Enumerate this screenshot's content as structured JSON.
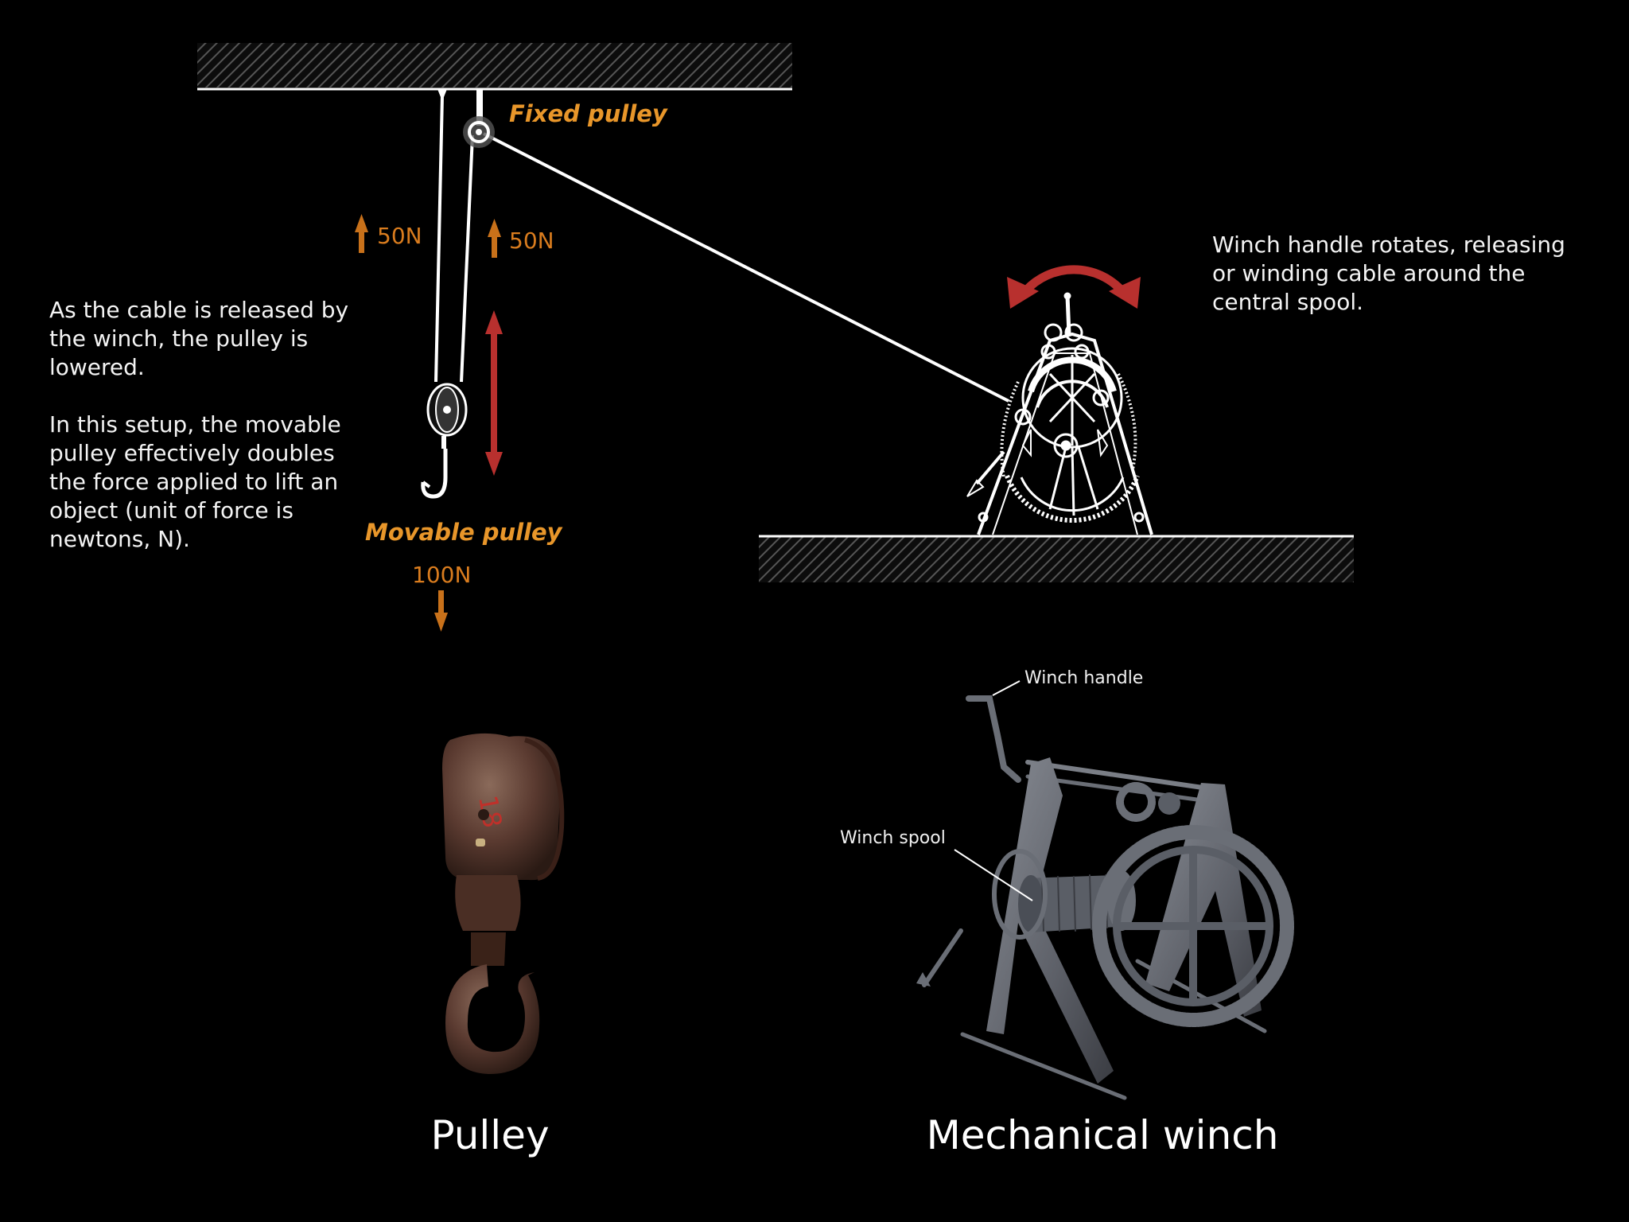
{
  "diagram": {
    "fixed_pulley_label": "Fixed pulley",
    "movable_pulley_label": "Movable pulley",
    "force_left": "50N",
    "force_right": "50N",
    "force_down": "100N",
    "explanation_1": "As the cable is released by the winch, the pulley is lowered.",
    "explanation_2": "In this setup, the movable pulley effectively doubles the force applied to lift an object (unit of force is newtons, N).",
    "winch_note": "Winch handle rotates, releasing or winding cable around the central spool."
  },
  "photos": {
    "winch_handle_label": "Winch handle",
    "winch_spool_label": "Winch spool",
    "pulley_caption": "Pulley",
    "winch_caption": "Mechanical winch"
  },
  "colors": {
    "background": "#000000",
    "label_orange": "#e8962a",
    "force_arrow": "#c8711a",
    "motion_arrow": "#b8302e",
    "line": "#ffffff"
  }
}
